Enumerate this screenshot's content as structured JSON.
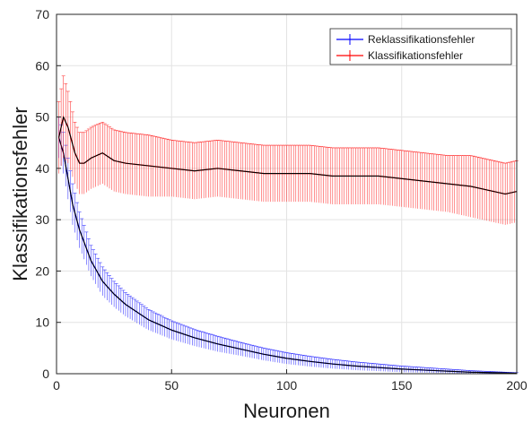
{
  "chart_data": {
    "type": "line",
    "title": "",
    "xlabel": "Neuronen",
    "ylabel": "Klassifikationsfehler",
    "xlim": [
      0,
      200
    ],
    "ylim": [
      0,
      70
    ],
    "x_ticks": [
      0,
      50,
      100,
      150,
      200
    ],
    "y_ticks": [
      0,
      10,
      20,
      30,
      40,
      50,
      60,
      70
    ],
    "grid": true,
    "legend_position": "top-right",
    "error_bars": true,
    "trend_line_color": "#000000",
    "series": [
      {
        "name": "Reklassifikationsfehler",
        "color": "#0000ff",
        "x": [
          1,
          3,
          5,
          7,
          10,
          15,
          20,
          25,
          30,
          40,
          50,
          60,
          70,
          80,
          90,
          100,
          110,
          120,
          130,
          140,
          150,
          160,
          170,
          180,
          190,
          200
        ],
        "y": [
          46,
          43,
          38,
          33,
          28,
          22,
          18,
          15.5,
          13.5,
          10.5,
          8.5,
          7,
          5.8,
          4.8,
          3.8,
          3,
          2.4,
          1.9,
          1.5,
          1.2,
          0.9,
          0.7,
          0.5,
          0.3,
          0.2,
          0.1
        ],
        "err": [
          4,
          4,
          4,
          4,
          3.5,
          3,
          2.8,
          2.5,
          2.3,
          2,
          1.8,
          1.6,
          1.5,
          1.3,
          1.2,
          1.1,
          1,
          0.9,
          0.8,
          0.7,
          0.6,
          0.5,
          0.4,
          0.3,
          0.2,
          0.1
        ]
      },
      {
        "name": "Klassifikationsfehler",
        "color": "#ff0000",
        "x": [
          1,
          3,
          5,
          8,
          10,
          12,
          15,
          20,
          25,
          30,
          40,
          50,
          60,
          70,
          80,
          90,
          100,
          110,
          120,
          130,
          140,
          150,
          160,
          170,
          180,
          190,
          195,
          200
        ],
        "y": [
          46,
          50,
          48,
          43,
          41,
          41,
          42,
          43,
          41.5,
          41,
          40.5,
          40,
          39.5,
          40,
          39.5,
          39,
          39,
          39,
          38.5,
          38.5,
          38.5,
          38,
          37.5,
          37,
          36.5,
          35.5,
          35,
          35.5
        ],
        "err": [
          7,
          8,
          7,
          6,
          6,
          6,
          6,
          6,
          6,
          6,
          6,
          5.5,
          5.5,
          5.5,
          5.5,
          5.5,
          5.5,
          5.5,
          5.5,
          5.5,
          5.5,
          5.5,
          5.5,
          5.5,
          6,
          6,
          6,
          6
        ]
      }
    ]
  }
}
